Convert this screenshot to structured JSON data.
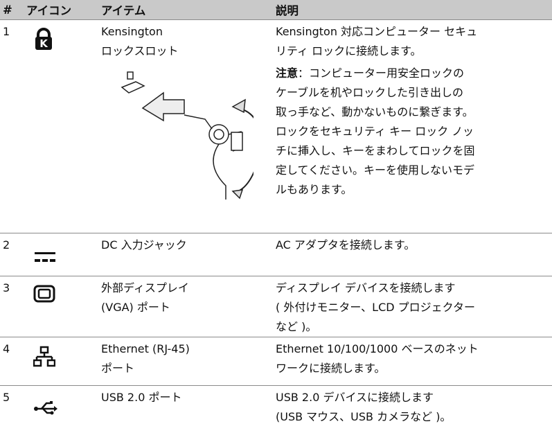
{
  "table": {
    "headers": [
      "#",
      "アイコン",
      "アイテム",
      "説明"
    ],
    "rows": [
      {
        "number": "1",
        "item": [
          "Kensington",
          "ロックスロット"
        ],
        "description": [
          "Kensington 対応コンピューター セキュ",
          "リティ ロックに接続します。"
        ],
        "note_label": "注意",
        "note_lines": [
          "：コンピューター用安全ロックの",
          "ケーブルを机やロックした引き出しの",
          "取っ手など、動かないものに繋ぎます。",
          "ロックをセキュリティ キー ロック ノッ",
          "チに挿入し、キーをまわしてロックを固",
          "定してください。キーを使用しないモデ",
          "ルもあります。"
        ]
      },
      {
        "number": "2",
        "item": [
          "DC 入力ジャック"
        ],
        "description": [
          "AC アダプタを接続します。"
        ]
      },
      {
        "number": "3",
        "item": [
          "外部ディスプレイ",
          "(VGA) ポート"
        ],
        "description": [
          "ディスプレイ デバイスを接続します",
          "( 外付けモニター、LCD プロジェクター",
          "など )。"
        ]
      },
      {
        "number": "4",
        "item": [
          "Ethernet (RJ-45)",
          "ポート"
        ],
        "description": [
          "Ethernet 10/100/1000 ベースのネット",
          "ワークに接続します。"
        ]
      },
      {
        "number": "5",
        "item": [
          "USB 2.0 ポート"
        ],
        "description": [
          "USB 2.0 デバイスに接続します",
          "(USB マウス、USB カメラなど )。"
        ]
      }
    ]
  }
}
